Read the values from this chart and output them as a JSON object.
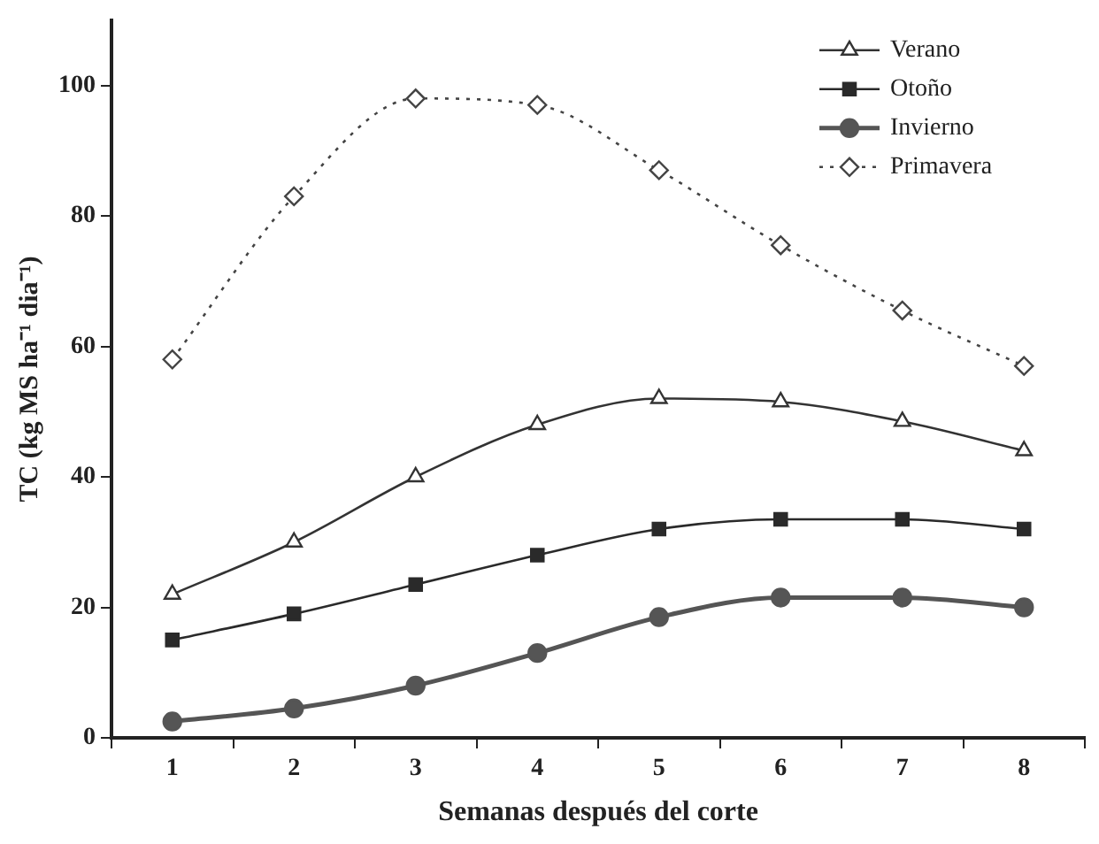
{
  "chart_data": {
    "type": "line",
    "xlabel": "Semanas después del corte",
    "ylabel": "TC (kg MS ha⁻¹ dia⁻¹)",
    "categories": [
      "1",
      "2",
      "3",
      "4",
      "5",
      "6",
      "7",
      "8"
    ],
    "ylim": [
      0,
      110
    ],
    "yticks": [
      0,
      20,
      40,
      60,
      80,
      100
    ],
    "grid": false,
    "legend": "top right",
    "series": [
      {
        "name": "Verano",
        "color": "#333333",
        "marker": "triangle",
        "line_style": "solid",
        "values": [
          22,
          30,
          40,
          48,
          52,
          51.5,
          48.5,
          44
        ]
      },
      {
        "name": "Otoño",
        "color": "#2a2a2a",
        "marker": "square",
        "line_style": "solid",
        "values": [
          15,
          19,
          23.5,
          28,
          32,
          33.5,
          33.5,
          32
        ]
      },
      {
        "name": "Invierno",
        "color": "#555555",
        "marker": "circle",
        "line_style": "solid",
        "values": [
          2.5,
          4.5,
          8,
          13,
          18.5,
          21.5,
          21.5,
          20
        ]
      },
      {
        "name": "Primavera",
        "color": "#444444",
        "marker": "diamond",
        "line_style": "dotted",
        "values": [
          58,
          83,
          98,
          97,
          87,
          75.5,
          65.5,
          57
        ]
      }
    ]
  }
}
